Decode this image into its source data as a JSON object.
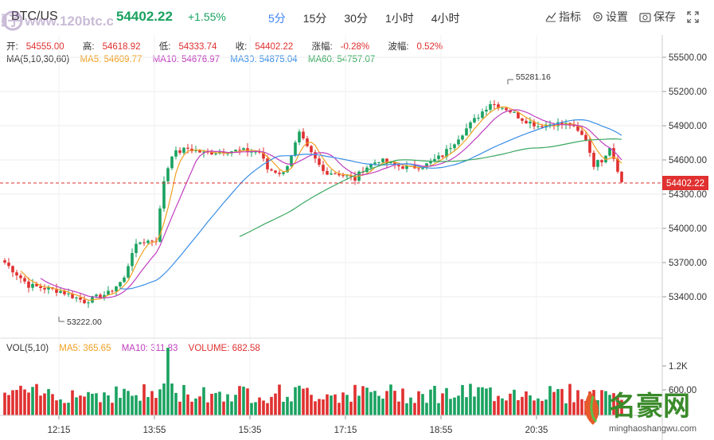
{
  "toolbar": {
    "symbol": "BTC/US",
    "price": "54402.22",
    "change": "+1.55%",
    "periods": [
      "5分",
      "15分",
      "30分",
      "1小时",
      "4小时"
    ],
    "active_period": "5分",
    "indicators_label": "指标",
    "settings_label": "设置",
    "save_label": "保存"
  },
  "ohlc": {
    "open_label": "开:",
    "open": "54555.00",
    "high_label": "高:",
    "high": "54618.92",
    "low_label": "低:",
    "low": "54333.74",
    "close_label": "收:",
    "close": "54402.22",
    "change_label": "涨幅:",
    "change": "-0.28%",
    "amp_label": "波幅:",
    "amp": "0.52%"
  },
  "ma": {
    "title": "MA(5,10,30,60)",
    "ma5": "MA5: 54609.77",
    "ma10": "MA10: 54676.97",
    "ma30": "MA30: 54875.04",
    "ma60": "MA60: 54757.07"
  },
  "vol": {
    "title": "VOL(5,10)",
    "ma5": "MA5: 365.65",
    "ma10": "MA10: 311.83",
    "volume": "VOLUME: 682.58"
  },
  "price_axis": [
    "55500.00",
    "55200.00",
    "54900.00",
    "54600.00",
    "54300.00",
    "54000.00",
    "53700.00",
    "53400.00"
  ],
  "vol_axis": [
    "1.2K",
    "600.00"
  ],
  "time_axis": [
    "12:15",
    "13:55",
    "15:35",
    "17:15",
    "18:55",
    "20:35"
  ],
  "current_price_tag": "54402.22",
  "high_marker": "55281.16",
  "low_marker": "53222.00",
  "watermark": "币圈子 www.120btc.com",
  "logo": {
    "text": "名豪网",
    "url": "minghaoshangwu.com"
  },
  "colors": {
    "up": "#1aa260",
    "down": "#e03030",
    "ma5": "#f0a020",
    "ma10": "#c040c0",
    "ma30": "#3a8ee6",
    "ma60": "#3aa860",
    "active": "#3b82f6"
  }
}
